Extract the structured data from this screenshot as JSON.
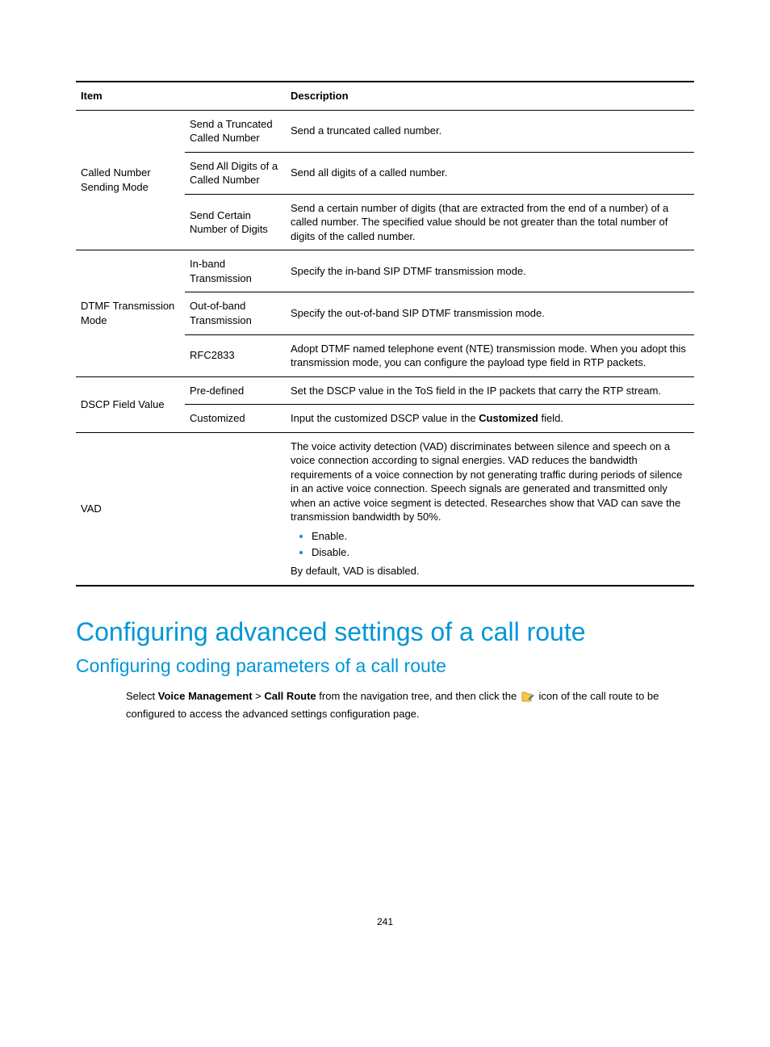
{
  "table": {
    "header": {
      "col1": "Item",
      "col2": "Description"
    },
    "groups": [
      {
        "item": "Called Number Sending Mode",
        "rows": [
          {
            "sub": "Send a Truncated Called Number",
            "desc_html": "Send a truncated called number."
          },
          {
            "sub": "Send All Digits of a Called Number",
            "desc_html": "Send all digits of a called number."
          },
          {
            "sub": "Send Certain Number of Digits",
            "desc_html": "Send a certain number of digits (that are extracted from the end of a number) of a called number. The specified value should be not greater than the total number of digits of the called number."
          }
        ]
      },
      {
        "item": "DTMF Transmission Mode",
        "rows": [
          {
            "sub": "In-band Transmission",
            "desc_html": "Specify the in-band SIP DTMF transmission mode."
          },
          {
            "sub": "Out-of-band Transmission",
            "desc_html": "Specify the out-of-band SIP DTMF transmission mode."
          },
          {
            "sub": "RFC2833",
            "desc_html": "Adopt DTMF named telephone event (NTE) transmission mode. When you adopt this transmission mode, you can configure the payload type field in RTP packets."
          }
        ]
      },
      {
        "item": "DSCP Field Value",
        "rows": [
          {
            "sub": "Pre-defined",
            "desc_html": "Set the DSCP value in the ToS field in the IP packets that carry the RTP stream."
          },
          {
            "sub": "Customized",
            "desc_html": "Input the customized DSCP value in the <b>Customized</b> field."
          }
        ]
      },
      {
        "item": "VAD",
        "rows": [
          {
            "sub": "",
            "desc_html": "<p>The voice activity detection (VAD) discriminates between silence and speech on a voice connection according to signal energies. VAD reduces the bandwidth requirements of a voice connection by not generating traffic during periods of silence in an active voice connection. Speech signals are generated and transmitted only when an active voice segment is detected. Researches show that VAD can save the transmission bandwidth by 50%.</p><ul class=\"bullets\"><li>Enable.</li><li>Disable.</li></ul><p>By default, VAD is disabled.</p>"
          }
        ]
      }
    ]
  },
  "headings": {
    "h1": "Configuring advanced settings of a call route",
    "h2": "Configuring coding parameters of a call route"
  },
  "paragraph": {
    "pre": "Select ",
    "b1": "Voice Management",
    "sep": " > ",
    "b2": "Call Route",
    "mid": " from the navigation tree, and then click the ",
    "post": " icon of the call route to be configured to access the advanced settings configuration page."
  },
  "icon": {
    "name": "edit-config-icon",
    "colors": {
      "folder": "#f2c94c",
      "folder_stroke": "#c08a00",
      "tool": "#5b87c7"
    }
  },
  "page_number": "241",
  "style": {
    "accent_color": "#0096d6",
    "text_color": "#000000",
    "border_color": "#000000",
    "background": "#ffffff"
  }
}
